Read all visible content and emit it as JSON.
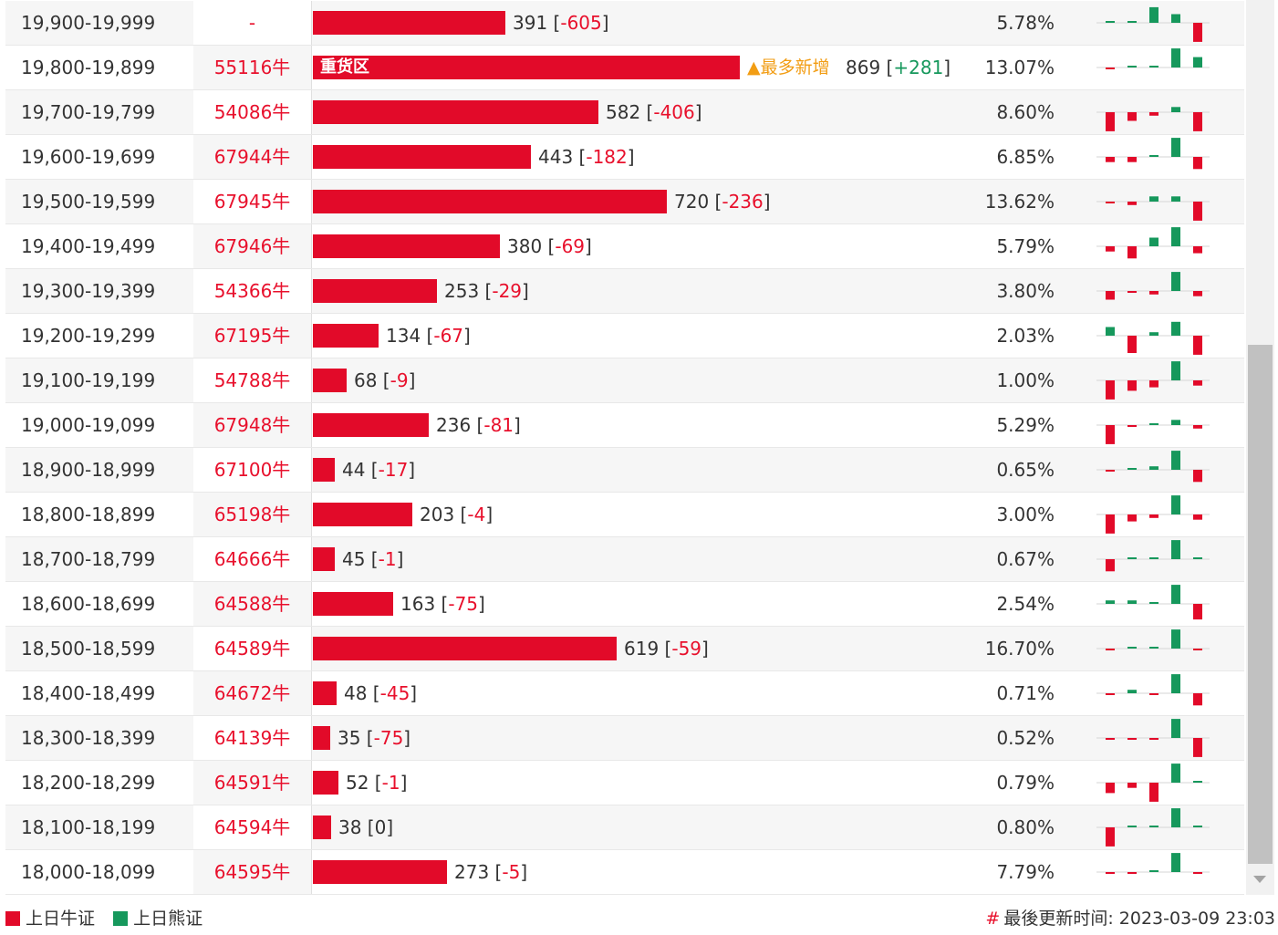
{
  "colors": {
    "bull": "#e20a29",
    "bear": "#16985c",
    "hot": "#f29d14"
  },
  "rows": [
    {
      "range": "19,900-19,999",
      "code": "-",
      "qty": 391,
      "change": "-605",
      "pct": "5.78%",
      "spark": [
        0.05,
        0.05,
        0.45,
        0.25,
        -0.55
      ]
    },
    {
      "range": "19,800-19,899",
      "code": "55116牛",
      "qty": 869,
      "change": "+281",
      "pct": "13.07%",
      "spark": [
        -0.05,
        0.05,
        0.05,
        0.55,
        0.3
      ],
      "label": "重货区",
      "tag": "▲最多新增"
    },
    {
      "range": "19,700-19,799",
      "code": "54086牛",
      "qty": 582,
      "change": "-406",
      "pct": "8.60%",
      "spark": [
        -0.55,
        -0.25,
        -0.1,
        0.15,
        -0.55
      ]
    },
    {
      "range": "19,600-19,699",
      "code": "67944牛",
      "qty": 443,
      "change": "-182",
      "pct": "6.85%",
      "spark": [
        -0.15,
        -0.15,
        0.05,
        0.55,
        -0.35
      ]
    },
    {
      "range": "19,500-19,599",
      "code": "67945牛",
      "qty": 720,
      "change": "-236",
      "pct": "13.62%",
      "spark": [
        -0.05,
        -0.1,
        0.15,
        0.15,
        -0.55
      ]
    },
    {
      "range": "19,400-19,499",
      "code": "67946牛",
      "qty": 380,
      "change": "-69",
      "pct": "5.79%",
      "spark": [
        -0.15,
        -0.35,
        0.25,
        0.55,
        -0.2
      ]
    },
    {
      "range": "19,300-19,399",
      "code": "54366牛",
      "qty": 253,
      "change": "-29",
      "pct": "3.80%",
      "spark": [
        -0.25,
        -0.05,
        -0.1,
        0.55,
        -0.15
      ]
    },
    {
      "range": "19,200-19,299",
      "code": "67195牛",
      "qty": 134,
      "change": "-67",
      "pct": "2.03%",
      "spark": [
        0.25,
        -0.5,
        0.1,
        0.4,
        -0.55
      ]
    },
    {
      "range": "19,100-19,199",
      "code": "54788牛",
      "qty": 68,
      "change": "-9",
      "pct": "1.00%",
      "spark": [
        -0.55,
        -0.3,
        -0.2,
        0.55,
        -0.15
      ]
    },
    {
      "range": "19,000-19,099",
      "code": "67948牛",
      "qty": 236,
      "change": "-81",
      "pct": "5.29%",
      "spark": [
        -0.55,
        -0.05,
        0.05,
        0.15,
        -0.1
      ]
    },
    {
      "range": "18,900-18,999",
      "code": "67100牛",
      "qty": 44,
      "change": "-17",
      "pct": "0.65%",
      "spark": [
        -0.05,
        0.0,
        0.1,
        0.55,
        -0.35
      ]
    },
    {
      "range": "18,800-18,899",
      "code": "65198牛",
      "qty": 203,
      "change": "-4",
      "pct": "3.00%",
      "spark": [
        -0.55,
        -0.2,
        -0.1,
        0.55,
        -0.15
      ]
    },
    {
      "range": "18,700-18,799",
      "code": "64666牛",
      "qty": 45,
      "change": "-1",
      "pct": "0.67%",
      "spark": [
        -0.35,
        0.0,
        0.0,
        0.55,
        0.0
      ]
    },
    {
      "range": "18,600-18,699",
      "code": "64588牛",
      "qty": 163,
      "change": "-75",
      "pct": "2.54%",
      "spark": [
        0.1,
        0.1,
        0.05,
        0.55,
        -0.45
      ]
    },
    {
      "range": "18,500-18,599",
      "code": "64589牛",
      "qty": 619,
      "change": "-59",
      "pct": "16.70%",
      "spark": [
        -0.05,
        0.05,
        0.05,
        0.55,
        -0.05
      ]
    },
    {
      "range": "18,400-18,499",
      "code": "64672牛",
      "qty": 48,
      "change": "-45",
      "pct": "0.71%",
      "spark": [
        -0.05,
        0.1,
        -0.05,
        0.55,
        -0.35
      ]
    },
    {
      "range": "18,300-18,399",
      "code": "64139牛",
      "qty": 35,
      "change": "-75",
      "pct": "0.52%",
      "spark": [
        -0.05,
        -0.05,
        -0.05,
        0.55,
        -0.55
      ]
    },
    {
      "range": "18,200-18,299",
      "code": "64591牛",
      "qty": 52,
      "change": "-1",
      "pct": "0.79%",
      "spark": [
        -0.3,
        -0.15,
        -0.55,
        0.55,
        0.0
      ]
    },
    {
      "range": "18,100-18,199",
      "code": "64594牛",
      "qty": 38,
      "change": "0",
      "pct": "0.80%",
      "spark": [
        -0.55,
        0.0,
        0.0,
        0.55,
        0.0
      ]
    },
    {
      "range": "18,000-18,099",
      "code": "64595牛",
      "qty": 273,
      "change": "-5",
      "pct": "7.79%",
      "spark": [
        -0.05,
        -0.05,
        0.05,
        0.55,
        -0.05
      ]
    }
  ],
  "legend": {
    "bull_label": "上日牛证",
    "bear_label": "上日熊证"
  },
  "footer": {
    "hash": "#",
    "updated_label": "最後更新时间:",
    "updated_time": "2023-03-09 23:03"
  }
}
